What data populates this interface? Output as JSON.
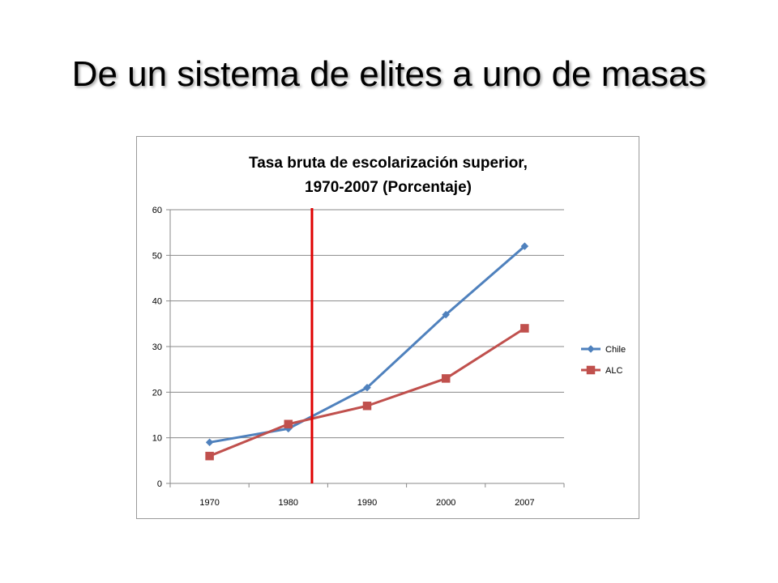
{
  "slide": {
    "title": "De un sistema de elites a uno de masas"
  },
  "chart_data": {
    "type": "line",
    "title_lines": [
      "Tasa bruta de escolarización superior,",
      "1970-2007 (Porcentaje)"
    ],
    "categories": [
      "1970",
      "1980",
      "1990",
      "2000",
      "2007"
    ],
    "series": [
      {
        "name": "Chile",
        "values": [
          9,
          12,
          21,
          37,
          52
        ],
        "color": "#4f81bd",
        "marker": "diamond"
      },
      {
        "name": "ALC",
        "values": [
          6,
          13,
          17,
          23,
          34
        ],
        "color": "#c0504d",
        "marker": "square"
      }
    ],
    "xlabel": "",
    "ylabel": "",
    "ylim": [
      0,
      60
    ],
    "yticks": [
      0,
      10,
      20,
      30,
      40,
      50,
      60
    ],
    "grid": true,
    "legend_position": "right",
    "annotation": {
      "type": "vertical-line",
      "x_between": [
        "1980",
        "1990"
      ],
      "fraction": 0.3,
      "color": "#e00000"
    }
  }
}
